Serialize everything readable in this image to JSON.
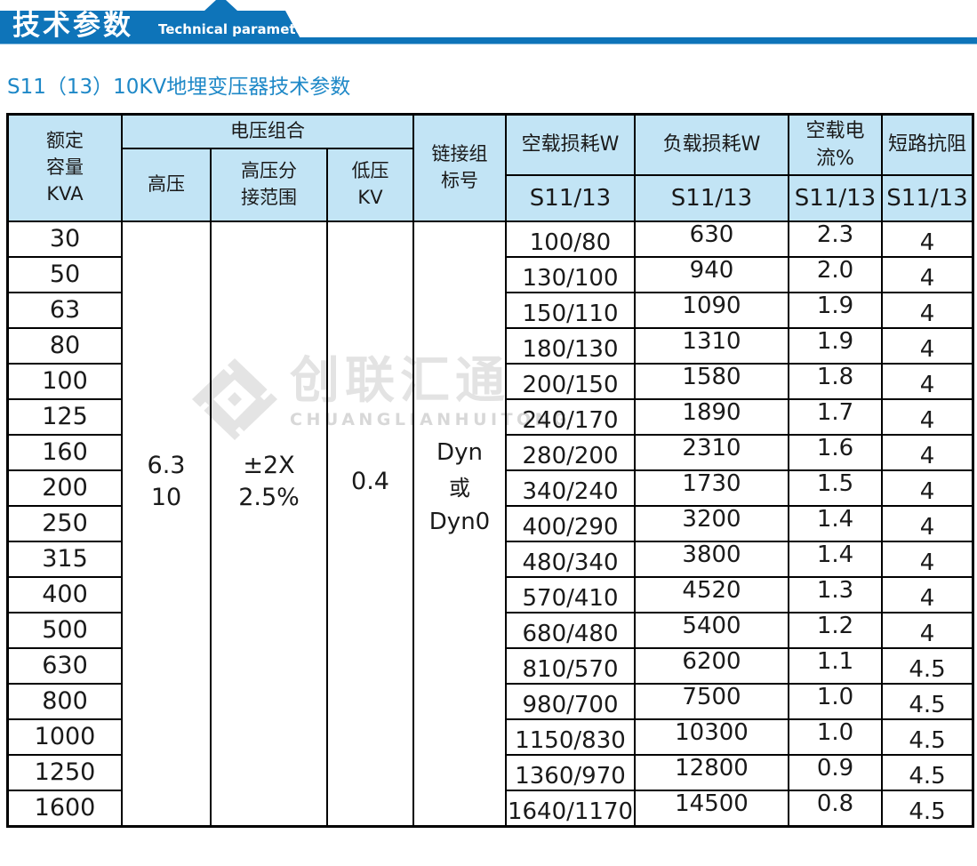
{
  "banner": {
    "title_cn": "技术参数",
    "title_en": "Technical parameter"
  },
  "subtitle": "S11（13）10KV地埋变压器技术参数",
  "watermark": {
    "text_cn": "创联汇通",
    "text_en": "CHUANGLIANHUITONG"
  },
  "colors": {
    "banner_blue": "#0e74b9",
    "subtitle_blue": "#1e88c7",
    "table_header_bg": "#c2e4f5",
    "border_black": "#000000",
    "watermark_gray": "#e3e3e3"
  },
  "table": {
    "header": {
      "capacity_lines": [
        "额定",
        "容量",
        "KVA"
      ],
      "voltage_group": "电压组合",
      "hv": "高压",
      "hv_tap_lines": [
        "高压分",
        "接范围"
      ],
      "lv_lines": [
        "低压",
        "KV"
      ],
      "link_group_lines": [
        "链接组",
        "标号"
      ],
      "no_load_loss": "空载损耗W",
      "load_loss": "负载损耗W",
      "no_load_current": "空载电流%",
      "short_impedance": "短路抗阻",
      "model_no_load_loss": "S11/13",
      "model_load_loss": "S11/13",
      "model_no_load_current": "S11/13",
      "model_short_impedance": "S11/13"
    },
    "shared": {
      "hv_lines": [
        "6.3",
        "10"
      ],
      "tap_lines": [
        "±2X",
        "2.5%"
      ],
      "lv_value": "0.4",
      "link_lines": [
        "Dyn",
        "或",
        "Dyn0"
      ]
    },
    "rows": [
      {
        "capacity": "30",
        "no_load_loss": "100/80",
        "load_loss": "630",
        "no_load_current": "2.3",
        "impedance": "4"
      },
      {
        "capacity": "50",
        "no_load_loss": "130/100",
        "load_loss": "940",
        "no_load_current": "2.0",
        "impedance": "4"
      },
      {
        "capacity": "63",
        "no_load_loss": "150/110",
        "load_loss": "1090",
        "no_load_current": "1.9",
        "impedance": "4"
      },
      {
        "capacity": "80",
        "no_load_loss": "180/130",
        "load_loss": "1310",
        "no_load_current": "1.9",
        "impedance": "4"
      },
      {
        "capacity": "100",
        "no_load_loss": "200/150",
        "load_loss": "1580",
        "no_load_current": "1.8",
        "impedance": "4"
      },
      {
        "capacity": "125",
        "no_load_loss": "240/170",
        "load_loss": "1890",
        "no_load_current": "1.7",
        "impedance": "4"
      },
      {
        "capacity": "160",
        "no_load_loss": "280/200",
        "load_loss": "2310",
        "no_load_current": "1.6",
        "impedance": "4"
      },
      {
        "capacity": "200",
        "no_load_loss": "340/240",
        "load_loss": "1730",
        "no_load_current": "1.5",
        "impedance": "4"
      },
      {
        "capacity": "250",
        "no_load_loss": "400/290",
        "load_loss": "3200",
        "no_load_current": "1.4",
        "impedance": "4"
      },
      {
        "capacity": "315",
        "no_load_loss": "480/340",
        "load_loss": "3800",
        "no_load_current": "1.4",
        "impedance": "4"
      },
      {
        "capacity": "400",
        "no_load_loss": "570/410",
        "load_loss": "4520",
        "no_load_current": "1.3",
        "impedance": "4"
      },
      {
        "capacity": "500",
        "no_load_loss": "680/480",
        "load_loss": "5400",
        "no_load_current": "1.2",
        "impedance": "4"
      },
      {
        "capacity": "630",
        "no_load_loss": "810/570",
        "load_loss": "6200",
        "no_load_current": "1.1",
        "impedance": "4.5"
      },
      {
        "capacity": "800",
        "no_load_loss": "980/700",
        "load_loss": "7500",
        "no_load_current": "1.0",
        "impedance": "4.5"
      },
      {
        "capacity": "1000",
        "no_load_loss": "1150/830",
        "load_loss": "10300",
        "no_load_current": "1.0",
        "impedance": "4.5"
      },
      {
        "capacity": "1250",
        "no_load_loss": "1360/970",
        "load_loss": "12800",
        "no_load_current": "0.9",
        "impedance": "4.5"
      },
      {
        "capacity": "1600",
        "no_load_loss": "1640/1170",
        "load_loss": "14500",
        "no_load_current": "0.8",
        "impedance": "4.5"
      }
    ]
  }
}
